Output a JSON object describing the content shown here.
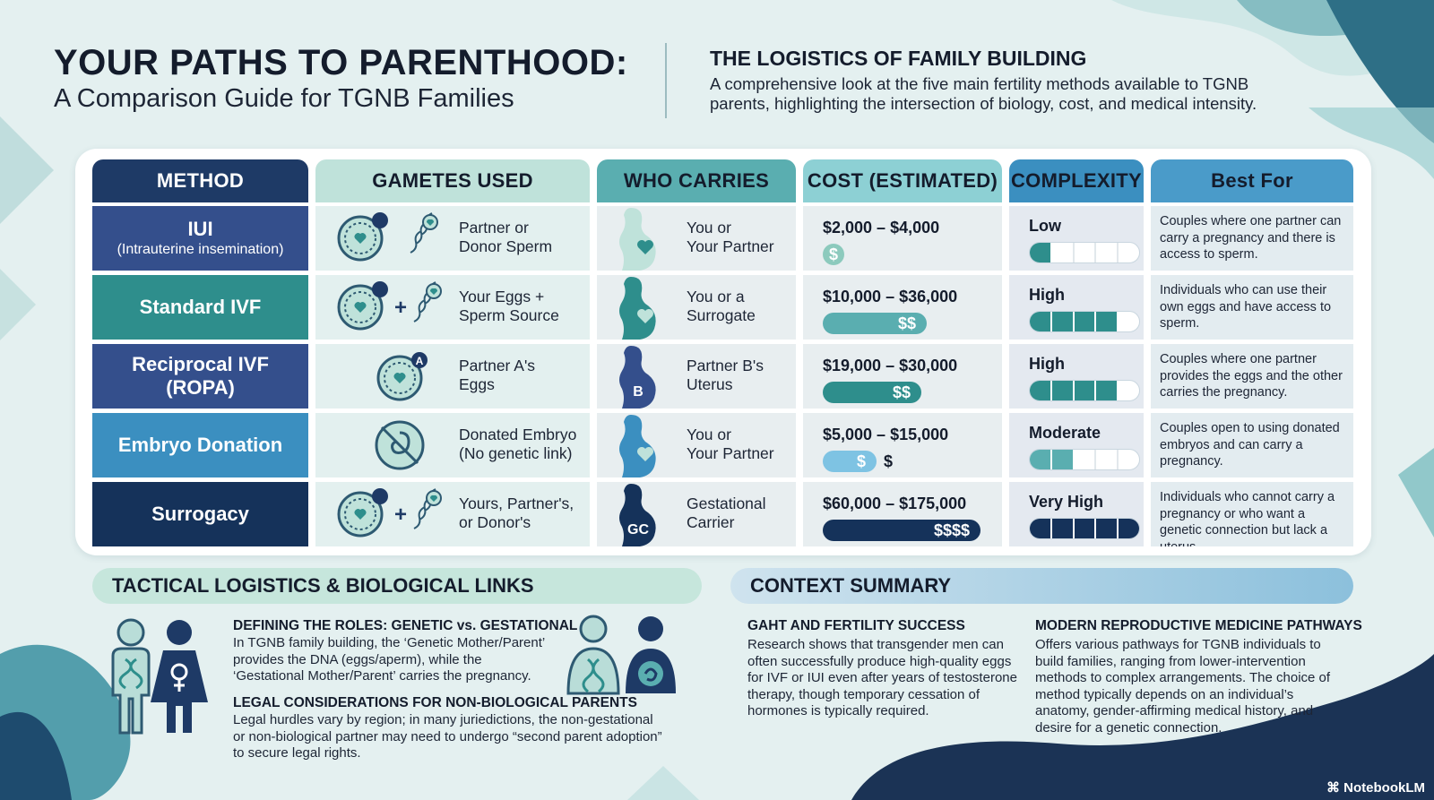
{
  "header": {
    "title": "YOUR PATHS TO PARENTHOOD:",
    "subtitle": "A Comparison Guide for TGNB Families",
    "logistics_title": "THE LOGISTICS OF FAMILY BUILDING",
    "logistics_desc": "A comprehensive look at the five main fertility methods available to TGNB parents, highlighting the intersection of biology, cost, and medical intensity."
  },
  "table": {
    "columns": [
      "METHOD",
      "GAMETES USED",
      "WHO CARRIES",
      "COST (ESTIMATED)",
      "COMPLEXITY",
      "Best For"
    ],
    "rows": [
      {
        "method": "IUI",
        "method_sub": "(Intrauterine insemination)",
        "gametes_line1": "Partner or",
        "gametes_line2": "Donor Sperm",
        "gametes_icon": "egg-and-sperm-icon",
        "carrier_line1": "You or",
        "carrier_line2": "Your Partner",
        "carrier_badge": "",
        "cost_range": "$2,000 – $4,000",
        "cost_symbol": "$",
        "cost_extra": "",
        "complexity": "Low",
        "complexity_level": 1,
        "best_for": "Couples where one partner can carry a pregnancy and there is access to sperm."
      },
      {
        "method": "Standard IVF",
        "method_sub": "",
        "gametes_line1": "Your Eggs +",
        "gametes_line2": "Sperm Source",
        "gametes_icon": "egg-plus-sperm-icon",
        "carrier_line1": "You or a",
        "carrier_line2": "Surrogate",
        "carrier_badge": "",
        "cost_range": "$10,000 – $36,000",
        "cost_symbol": "$$",
        "cost_extra": "",
        "complexity": "High",
        "complexity_level": 4,
        "best_for": "Individuals who can use their own eggs and have access to sperm."
      },
      {
        "method": "Reciprocal IVF",
        "method_sub": "(ROPA)",
        "gametes_line1": "Partner A's",
        "gametes_line2": "Eggs",
        "gametes_icon": "egg-a-icon",
        "egg_badge": "A",
        "carrier_line1": "Partner B's",
        "carrier_line2": "Uterus",
        "carrier_badge": "B",
        "cost_range": "$19,000 – $30,000",
        "cost_symbol": "$$",
        "cost_extra": "",
        "complexity": "High",
        "complexity_level": 4,
        "best_for": "Couples where one partner provides the eggs and the other carries the pregnancy."
      },
      {
        "method": "Embryo Donation",
        "method_sub": "",
        "gametes_line1": "Donated Embryo",
        "gametes_line2": "(No genetic link)",
        "gametes_icon": "embryo-icon",
        "carrier_line1": "You or",
        "carrier_line2": "Your Partner",
        "carrier_badge": "",
        "cost_range": "$5,000 – $15,000",
        "cost_symbol": "$",
        "cost_extra": "$",
        "complexity": "Moderate",
        "complexity_level": 2,
        "best_for": "Couples open to using donated embryos and can carry a pregnancy."
      },
      {
        "method": "Surrogacy",
        "method_sub": "",
        "gametes_line1": "Yours, Partner's,",
        "gametes_line2": "or Donor's",
        "gametes_icon": "egg-plus-sperm-icon",
        "carrier_line1": "Gestational",
        "carrier_line2": "Carrier",
        "carrier_badge": "GC",
        "cost_range": "$60,000 – $175,000",
        "cost_symbol": "$$$$",
        "cost_extra": "",
        "complexity": "Very High",
        "complexity_level": 5,
        "best_for": "Individuals who cannot carry a pregnancy or who want a genetic connection but lack a uterus."
      }
    ]
  },
  "tactical": {
    "title": "TACTICAL LOGISTICS & BIOLOGICAL LINKS",
    "roles_head": "DEFINING THE ROLES: GENETIC vs. GESTATIONAL",
    "roles_text": "In TGNB family building, the ‘Genetic Mother/Parent’ provides the DNA (eggs/aperm), while the ‘Gestational Mother/Parent’ carries the pregnancy.",
    "legal_head": "LEGAL CONSIDERATIONS FOR NON-BIOLOGICAL PARENTS",
    "legal_text": "Legal hurdles vary by region; in many juriedictions, the non-gestational or non-biological partner may need to undergo “second parent adoption” to secure legal rights."
  },
  "context": {
    "title": "CONTEXT SUMMARY",
    "gaht_head": "GAHT AND FERTILITY SUCCESS",
    "gaht_text": "Research shows that transgender men can often successfully produce high-quality eggs for IVF or IUI even after years of testosterone therapy, though temporary cessation of hormones is typically required.",
    "modern_head": "MODERN REPRODUCTIVE MEDICINE PATHWAYS",
    "modern_text": "Offers various pathways for TGNB individuals to build families, ranging from lower-intervention methods to complex arrangements. The choice of method typically depends on an individual’s anatomy, gender-affirming medical history, and desire for a genetic connection."
  },
  "brand": "NotebookLM",
  "colors": {
    "navy": "#1e3a66",
    "teal": "#2e8e8c",
    "indigo": "#344f8c",
    "blue": "#3b8fc0",
    "dark_navy": "#15325a",
    "mint": "#a9d5cc",
    "aqua": "#5aaeb0",
    "cost_head": "#8dd0d4",
    "cx_head": "#3b8fc0",
    "best_head": "#4a9bc9"
  }
}
